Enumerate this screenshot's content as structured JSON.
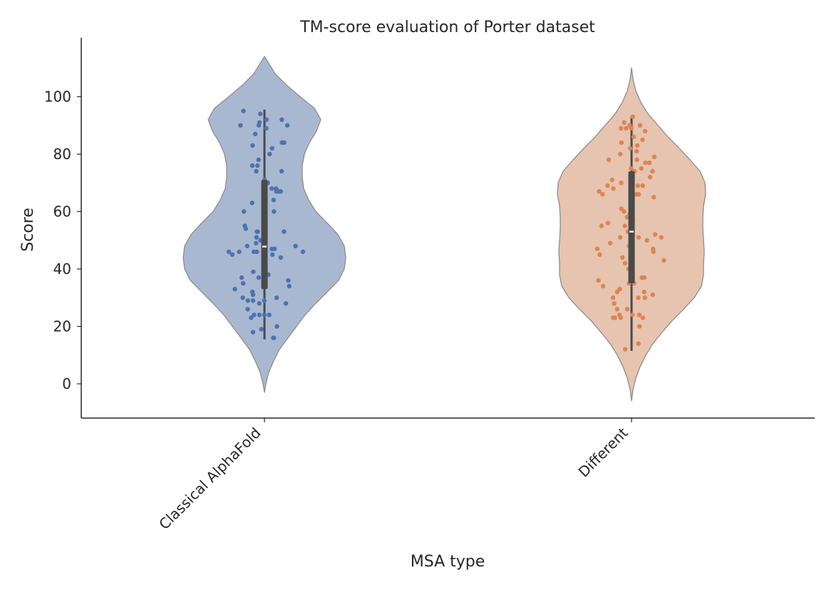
{
  "chart_data": {
    "type": "violin",
    "title": "TM-score evaluation of Porter dataset",
    "xlabel": "MSA type",
    "ylabel": "Score",
    "ylim": [
      -12,
      120
    ],
    "yticks": [
      0,
      20,
      40,
      60,
      80,
      100
    ],
    "grid": false,
    "categories": [
      "Classical AlphaFold",
      "Different"
    ],
    "series": [
      {
        "color": "#4c72b0",
        "fill_color": "#a9b8d1",
        "median": 47.8,
        "q1": 33,
        "q3": 71,
        "whisker_low": 15.5,
        "whisker_high": 95.5,
        "density_profile": [
          [
            -3,
            0
          ],
          [
            0,
            2
          ],
          [
            4,
            6
          ],
          [
            8,
            13
          ],
          [
            12,
            21
          ],
          [
            16,
            33
          ],
          [
            20,
            45
          ],
          [
            24,
            57
          ],
          [
            28,
            72
          ],
          [
            32,
            88
          ],
          [
            36,
            104
          ],
          [
            40,
            112
          ],
          [
            44,
            114
          ],
          [
            48,
            112
          ],
          [
            52,
            103
          ],
          [
            56,
            88
          ],
          [
            60,
            72
          ],
          [
            64,
            62
          ],
          [
            68,
            55
          ],
          [
            72,
            53
          ],
          [
            76,
            53
          ],
          [
            80,
            56
          ],
          [
            84,
            63
          ],
          [
            88,
            73
          ],
          [
            92,
            79
          ],
          [
            96,
            70
          ],
          [
            100,
            50
          ],
          [
            104,
            31
          ],
          [
            108,
            15
          ],
          [
            112,
            5
          ],
          [
            114,
            0
          ]
        ],
        "points": [
          16,
          16,
          18,
          19,
          20,
          23,
          24,
          24,
          24,
          24,
          26,
          28,
          28,
          29,
          29,
          29,
          30,
          30,
          31,
          32,
          33,
          34,
          35,
          36,
          37,
          37,
          38,
          39,
          44,
          45,
          45,
          46,
          46,
          46,
          46,
          46,
          47,
          47,
          48,
          48,
          49,
          50,
          51,
          53,
          53,
          53,
          54,
          55,
          60,
          60,
          63,
          64,
          67,
          67,
          67,
          68,
          68,
          70,
          71,
          74,
          74,
          76,
          76,
          78,
          80,
          82,
          83,
          84,
          84,
          87,
          89,
          90,
          90,
          90,
          91,
          92,
          92,
          94,
          95
        ]
      },
      {
        "color": "#dd8452",
        "fill_color": "#e6c4b0",
        "median": 53,
        "q1": 35,
        "q3": 74,
        "whisker_low": 11.5,
        "whisker_high": 93,
        "density_profile": [
          [
            -6,
            0
          ],
          [
            -2,
            2
          ],
          [
            2,
            6
          ],
          [
            6,
            12
          ],
          [
            10,
            20
          ],
          [
            14,
            30
          ],
          [
            18,
            43
          ],
          [
            22,
            57
          ],
          [
            26,
            73
          ],
          [
            30,
            88
          ],
          [
            34,
            98
          ],
          [
            38,
            101
          ],
          [
            42,
            101
          ],
          [
            46,
            102
          ],
          [
            50,
            101
          ],
          [
            54,
            100
          ],
          [
            58,
            100
          ],
          [
            62,
            101
          ],
          [
            66,
            104
          ],
          [
            70,
            103
          ],
          [
            74,
            96
          ],
          [
            78,
            82
          ],
          [
            82,
            67
          ],
          [
            86,
            51
          ],
          [
            90,
            37
          ],
          [
            94,
            23
          ],
          [
            98,
            13
          ],
          [
            102,
            6
          ],
          [
            106,
            2
          ],
          [
            110,
            0
          ]
        ],
        "points": [
          12,
          14,
          20,
          23,
          23,
          23,
          23,
          24,
          24,
          24,
          26,
          26,
          28,
          30,
          30,
          30,
          31,
          32,
          32,
          33,
          34,
          35,
          35,
          36,
          37,
          37,
          38,
          40,
          42,
          43,
          44,
          45,
          46,
          47,
          47,
          48,
          49,
          50,
          51,
          51,
          51,
          52,
          53,
          55,
          55,
          56,
          57,
          58,
          59,
          60,
          61,
          65,
          66,
          66,
          66,
          67,
          67,
          68,
          69,
          69,
          69,
          70,
          71,
          72,
          74,
          74,
          75,
          75,
          77,
          77,
          78,
          78,
          79,
          80,
          81,
          82,
          83,
          84,
          85,
          86,
          88,
          89,
          89,
          89,
          90,
          90,
          91,
          93
        ]
      }
    ]
  }
}
